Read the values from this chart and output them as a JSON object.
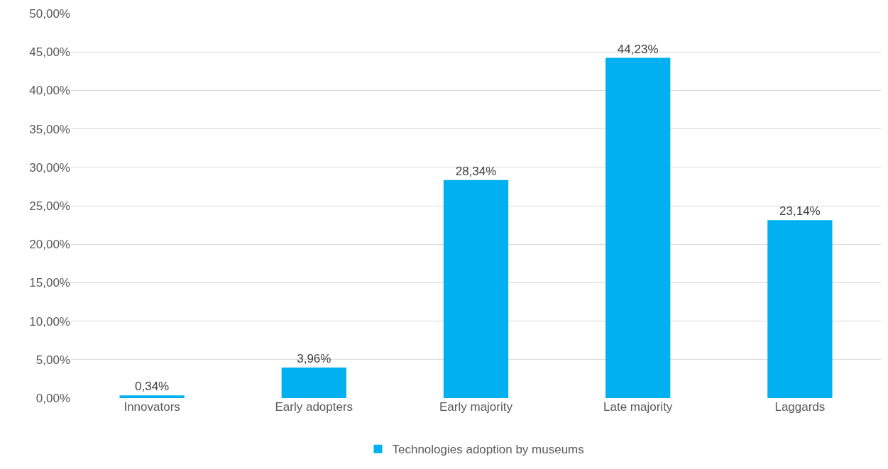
{
  "chart_data": {
    "type": "bar",
    "categories": [
      "Innovators",
      "Early adopters",
      "Early majority",
      "Late majority",
      "Laggards"
    ],
    "series": [
      {
        "name": "Technologies adoption by museums",
        "color": "#00b0f0",
        "values": [
          0.34,
          3.96,
          28.34,
          44.23,
          23.14
        ],
        "value_labels": [
          "0,34%",
          "3,96%",
          "28,34%",
          "44,23%",
          "23,14%"
        ]
      }
    ],
    "ylim": [
      0,
      50
    ],
    "yticks": [
      {
        "value": 0,
        "label": "0,00%"
      },
      {
        "value": 5,
        "label": "5,00%"
      },
      {
        "value": 10,
        "label": "10,00%"
      },
      {
        "value": 15,
        "label": "15,00%"
      },
      {
        "value": 20,
        "label": "20,00%"
      },
      {
        "value": 25,
        "label": "25,00%"
      },
      {
        "value": 30,
        "label": "30,00%"
      },
      {
        "value": 35,
        "label": "35,00%"
      },
      {
        "value": 40,
        "label": "40,00%"
      },
      {
        "value": 45,
        "label": "45,00%"
      },
      {
        "value": 50,
        "label": "50,00%"
      }
    ],
    "grid": "y",
    "legend": "bottom"
  }
}
